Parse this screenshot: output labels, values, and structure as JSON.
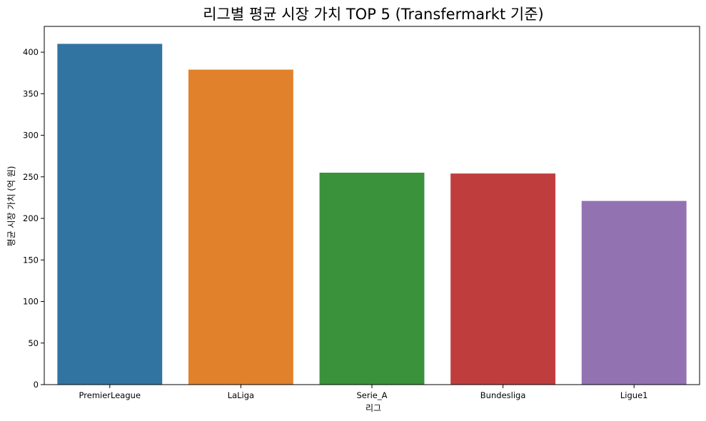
{
  "chart_data": {
    "type": "bar",
    "title": "리그별 평균 시장 가치 TOP 5 (Transfermarkt 기준)",
    "xlabel": "리그",
    "ylabel": "평균 시장 가치 (억 원)",
    "categories": [
      "PremierLeague",
      "LaLiga",
      "Serie_A",
      "Bundesliga",
      "Ligue1"
    ],
    "values": [
      410,
      379,
      255,
      254,
      221
    ],
    "colors": [
      "#3274a1",
      "#e1812c",
      "#3a923a",
      "#c03d3e",
      "#9372b2"
    ],
    "ylim": [
      0,
      431
    ],
    "yticks": [
      0,
      50,
      100,
      150,
      200,
      250,
      300,
      350,
      400
    ],
    "grid": false,
    "legend": "none"
  }
}
